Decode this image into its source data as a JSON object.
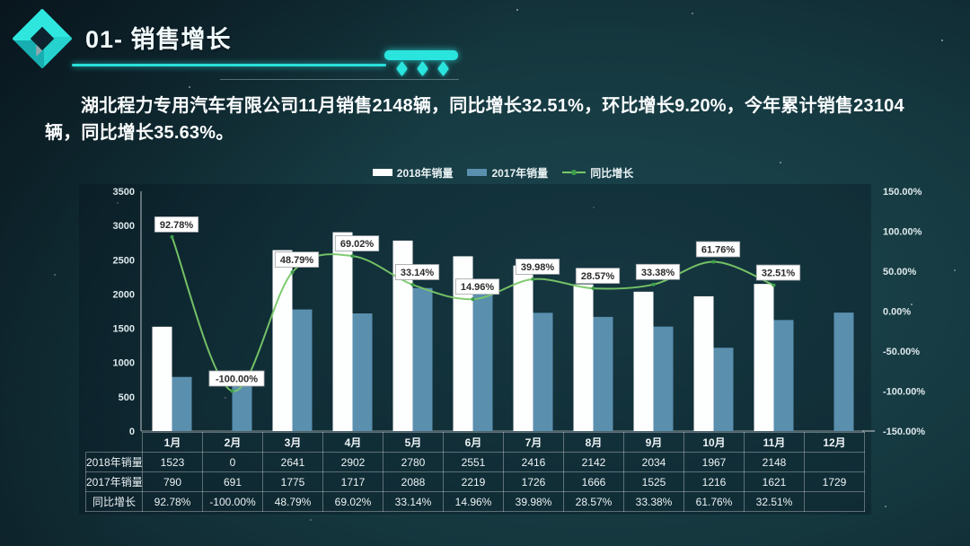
{
  "header": {
    "title": "01- 销售增长"
  },
  "summary": {
    "text": "湖北程力专用汽车有限公司11月销售2148辆，同比增长32.51%，环比增长9.20%，今年累计销售23104辆，同比增长35.63%。"
  },
  "colors": {
    "accent_cyan": "#2ae4de",
    "bar_2018": "#fdfefe",
    "bar_2017": "#5a8fae",
    "growth_line": "#79c868",
    "growth_marker": "#3d9e4b",
    "label_box_bg": "#ffffff",
    "label_box_text": "#2b2b2b",
    "axis_text": "#dde9ec"
  },
  "chart_data": {
    "type": "bar",
    "subtype": "combo-bar-line",
    "categories": [
      "1月",
      "2月",
      "3月",
      "4月",
      "5月",
      "6月",
      "7月",
      "8月",
      "9月",
      "10月",
      "11月",
      "12月"
    ],
    "series": [
      {
        "name": "2018年销量",
        "type": "bar",
        "color": "#fdfefe",
        "values": [
          1523,
          0,
          2641,
          2902,
          2780,
          2551,
          2416,
          2142,
          2034,
          1967,
          2148,
          null
        ]
      },
      {
        "name": "2017年销量",
        "type": "bar",
        "color": "#5a8fae",
        "values": [
          790,
          691,
          1775,
          1717,
          2088,
          2219,
          1726,
          1666,
          1525,
          1216,
          1621,
          1729
        ]
      },
      {
        "name": "同比增长",
        "type": "line",
        "axis": "right",
        "color": "#79c868",
        "marker_color": "#3d9e4b",
        "values": [
          92.78,
          -100,
          48.79,
          69.02,
          33.14,
          14.96,
          39.98,
          28.57,
          33.38,
          61.76,
          32.51,
          null
        ],
        "labels": [
          "92.78%",
          "-100.00%",
          "48.79%",
          "69.02%",
          "33.14%",
          "14.96%",
          "39.98%",
          "28.57%",
          "33.38%",
          "61.76%",
          "32.51%",
          ""
        ]
      }
    ],
    "left_axis": {
      "min": 0,
      "max": 3500,
      "step": 500,
      "ticks": [
        "3500",
        "3000",
        "2500",
        "2000",
        "1500",
        "1000",
        "500",
        "0"
      ]
    },
    "right_axis": {
      "min": -150,
      "max": 150,
      "step": 50,
      "ticks": [
        "150.00%",
        "100.00%",
        "50.00%",
        "0.00%",
        "-50.00%",
        "-100.00%",
        "-150.00%"
      ]
    },
    "grid": false,
    "legend_position": "top"
  },
  "table": {
    "corner": "",
    "columns": [
      "1月",
      "2月",
      "3月",
      "4月",
      "5月",
      "6月",
      "7月",
      "8月",
      "9月",
      "10月",
      "11月",
      "12月"
    ],
    "rows": [
      {
        "label": "2018年销量",
        "cells": [
          "1523",
          "0",
          "2641",
          "2902",
          "2780",
          "2551",
          "2416",
          "2142",
          "2034",
          "1967",
          "2148",
          ""
        ]
      },
      {
        "label": "2017年销量",
        "cells": [
          "790",
          "691",
          "1775",
          "1717",
          "2088",
          "2219",
          "1726",
          "1666",
          "1525",
          "1216",
          "1621",
          "1729"
        ]
      },
      {
        "label": "同比增长",
        "cells": [
          "92.78%",
          "-100.00%",
          "48.79%",
          "69.02%",
          "33.14%",
          "14.96%",
          "39.98%",
          "28.57%",
          "33.38%",
          "61.76%",
          "32.51%",
          ""
        ]
      }
    ]
  }
}
